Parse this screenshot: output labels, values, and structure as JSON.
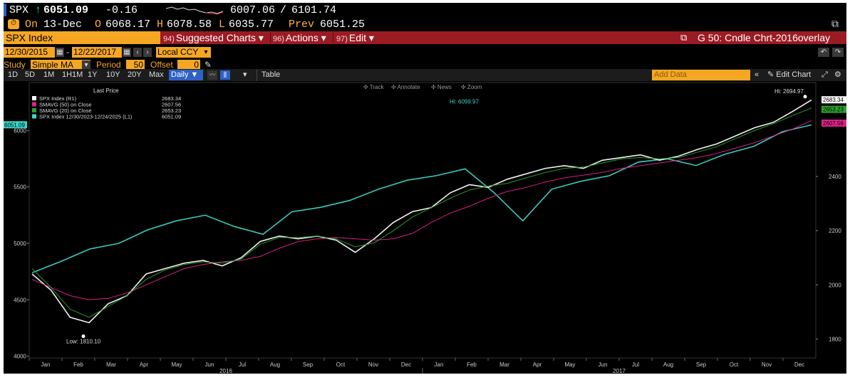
{
  "header": {
    "ticker": "SPX",
    "arrow": "↑",
    "last": "6051.09",
    "change": "-0.16",
    "range_low": "6007.06",
    "range_sep": "/",
    "range_high": "6101.74",
    "on_label": "On",
    "on_date": "13-Dec",
    "o_label": "O",
    "open": "6068.17",
    "h_label": "H",
    "high": "6078.58",
    "l_label": "L",
    "low": "6035.77",
    "prev_label": "Prev",
    "prev": "6051.25"
  },
  "menubar": {
    "security": "SPX Index",
    "items": [
      {
        "num": "94)",
        "label": "Suggested Charts ▾"
      },
      {
        "num": "96)",
        "label": "Actions ▾"
      },
      {
        "num": "97)",
        "label": "Edit ▾"
      }
    ],
    "right_title": "G 50: Cndle Chrt-2016overlay"
  },
  "controls": {
    "start_date": "12/30/2015",
    "dash": "-",
    "end_date": "12/22/2017",
    "ccy": "Local CCY",
    "study_label": "Study",
    "study_value": "Simple MA",
    "period_label": "Period",
    "period_value": "50",
    "offset_label": "Offset",
    "offset_value": "0"
  },
  "toolbar": {
    "ranges": [
      "1D",
      "5D",
      "1M",
      "1H1M",
      "1Y",
      "10Y",
      "20Y",
      "Max"
    ],
    "freq": "Daily ▼",
    "table_tab": "Table",
    "add_data_placeholder": "Add Data",
    "edit_chart": "Edit Chart"
  },
  "chart_tools": [
    "Track",
    "Annotate",
    "News",
    "Zoom"
  ],
  "legend": {
    "title": "Last Price",
    "rows": [
      {
        "label": "SPX Index  (R1)",
        "value": "2683.34",
        "color": "#ffffff"
      },
      {
        "label": "SMAVG (50)  on Close",
        "value": "2607.56",
        "color": "#e0218a"
      },
      {
        "label": "SMAVG (20)  on Close",
        "value": "2653.23",
        "color": "#2ca02c"
      },
      {
        "label": "SPX Index 12/30/2023-12/24/2025  (L1)",
        "value": "6051.09",
        "color": "#3ad6c8"
      }
    ]
  },
  "chart_data": {
    "type": "line",
    "left_axis": {
      "ticks": [
        "4000",
        "4500",
        "5000",
        "5500",
        "6000"
      ],
      "range": [
        3985,
        6425
      ],
      "current_label": "6051.09"
    },
    "right_axis": {
      "ticks": [
        "1800",
        "2000",
        "2200",
        "2400"
      ],
      "range": [
        1730,
        2747
      ],
      "labels": [
        "2683.34",
        "2653.23",
        "2607.56"
      ]
    },
    "x_axis": {
      "months": [
        "Jan",
        "Feb",
        "Mar",
        "Apr",
        "May",
        "Jun",
        "Jul",
        "Aug",
        "Sep",
        "Oct",
        "Nov",
        "Dec",
        "Jan",
        "Feb",
        "Mar",
        "Apr",
        "May",
        "Jun",
        "Jul",
        "Aug",
        "Sep",
        "Oct",
        "Nov",
        "Dec"
      ],
      "years": [
        "2016",
        "2017"
      ]
    },
    "annotations": {
      "low": "Low: 1810.10",
      "hi_right": "Hi: 2694.97",
      "hi_left": "Hi: 6099.97"
    },
    "series": [
      {
        "name": "SPX Index 12/30/2023-12/24/2025",
        "axis": "left",
        "color": "#3ad6c8",
        "values": [
          4740,
          4840,
          4950,
          5000,
          5120,
          5200,
          5250,
          5150,
          5080,
          5280,
          5320,
          5380,
          5480,
          5560,
          5600,
          5660,
          5450,
          5200,
          5480,
          5550,
          5600,
          5720,
          5750,
          5690,
          5790,
          5860,
          5990,
          6050
        ]
      },
      {
        "name": "SPX Index",
        "axis": "right",
        "color": "#ffffff",
        "values": [
          2040,
          1980,
          1880,
          1860,
          1930,
          1960,
          2040,
          2060,
          2080,
          2090,
          2070,
          2100,
          2160,
          2180,
          2170,
          2180,
          2165,
          2120,
          2170,
          2230,
          2270,
          2285,
          2340,
          2370,
          2360,
          2390,
          2410,
          2430,
          2440,
          2430,
          2460,
          2470,
          2480,
          2460,
          2475,
          2500,
          2520,
          2550,
          2580,
          2600,
          2640,
          2683
        ]
      },
      {
        "name": "SMAVG (50)  on Close",
        "axis": "right",
        "color": "#e0218a",
        "values": [
          2020,
          1990,
          1960,
          1945,
          1950,
          1970,
          2000,
          2030,
          2060,
          2075,
          2085,
          2090,
          2105,
          2135,
          2160,
          2170,
          2175,
          2170,
          2165,
          2170,
          2190,
          2230,
          2265,
          2290,
          2320,
          2345,
          2360,
          2380,
          2395,
          2405,
          2415,
          2430,
          2440,
          2450,
          2460,
          2470,
          2485,
          2505,
          2525,
          2550,
          2575,
          2607
        ]
      },
      {
        "name": "SMAVG (20)  on Close",
        "axis": "right",
        "color": "#2ca02c",
        "values": [
          2060,
          1990,
          1910,
          1880,
          1920,
          1960,
          2020,
          2055,
          2075,
          2085,
          2080,
          2095,
          2150,
          2175,
          2175,
          2180,
          2170,
          2140,
          2155,
          2200,
          2250,
          2285,
          2320,
          2350,
          2365,
          2375,
          2395,
          2415,
          2430,
          2435,
          2450,
          2465,
          2470,
          2465,
          2470,
          2490,
          2510,
          2540,
          2570,
          2595,
          2625,
          2653
        ]
      }
    ]
  }
}
